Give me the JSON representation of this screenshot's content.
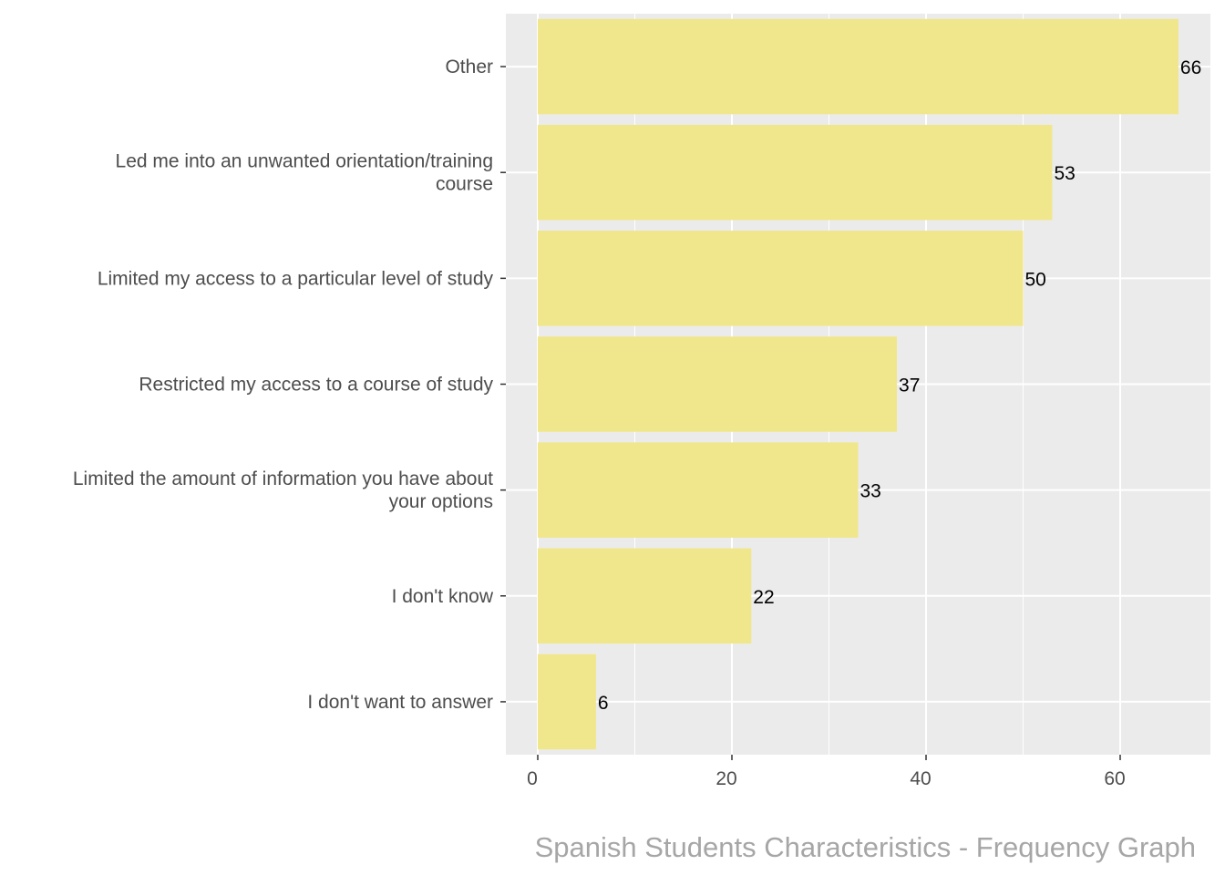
{
  "chart_data": {
    "type": "bar",
    "orientation": "horizontal",
    "title": "Spanish Students Characteristics - Frequency Graph",
    "xlabel": "",
    "ylabel": "",
    "categories": [
      [
        "Other"
      ],
      [
        "Led me into an unwanted orientation/training",
        "course"
      ],
      [
        "Limited my access to a particular level of study"
      ],
      [
        "Restricted my access to a course of study"
      ],
      [
        "Limited the amount of information you have about",
        "your options"
      ],
      [
        "I don't know"
      ],
      [
        "I don't want to answer"
      ]
    ],
    "values": [
      66,
      53,
      50,
      37,
      33,
      22,
      6
    ],
    "xlim": [
      -3.3,
      69.3
    ],
    "xticks": [
      0,
      20,
      40,
      60
    ],
    "grid": true,
    "colors": {
      "bar": "#F0E68C",
      "panel": "#EBEBEB",
      "grid": "#FFFFFF",
      "title": "#A6A6A6"
    }
  }
}
